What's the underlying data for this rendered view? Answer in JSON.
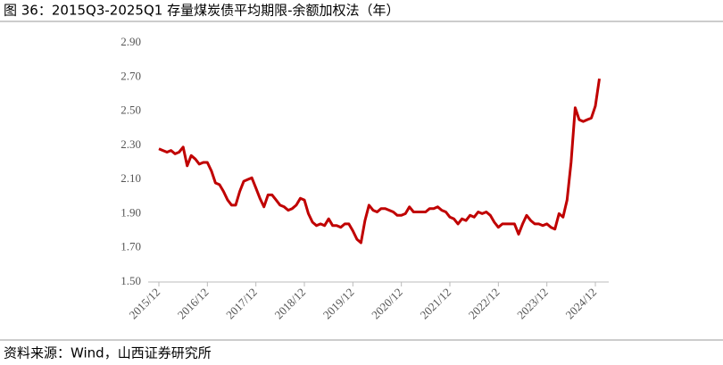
{
  "chart_data": {
    "type": "line",
    "title": "图 36：2015Q3-2025Q1 存量煤炭债平均期限-余额加权法（年）",
    "source": "资料来源：Wind，山西证券研究所",
    "categories": [
      "2015/12",
      null,
      null,
      null,
      null,
      null,
      null,
      null,
      null,
      null,
      null,
      null,
      "2016/12",
      null,
      null,
      null,
      null,
      null,
      null,
      null,
      null,
      null,
      null,
      null,
      "2017/12",
      null,
      null,
      null,
      null,
      null,
      null,
      null,
      null,
      null,
      null,
      null,
      "2018/12",
      null,
      null,
      null,
      null,
      null,
      null,
      null,
      null,
      null,
      null,
      null,
      "2019/12",
      null,
      null,
      null,
      null,
      null,
      null,
      null,
      null,
      null,
      null,
      null,
      "2020/12",
      null,
      null,
      null,
      null,
      null,
      null,
      null,
      null,
      null,
      null,
      null,
      "2021/12",
      null,
      null,
      null,
      null,
      null,
      null,
      null,
      null,
      null,
      null,
      null,
      "2022/12",
      null,
      null,
      null,
      null,
      null,
      null,
      null,
      null,
      null,
      null,
      null,
      "2023/12",
      null,
      null,
      null,
      null,
      null,
      null,
      null,
      null,
      null,
      null,
      null,
      "2024/12",
      null
    ],
    "series": [
      {
        "name": "余额加权平均期限",
        "color": "#c00000",
        "values": [
          2.28,
          2.27,
          2.26,
          2.27,
          2.25,
          2.26,
          2.29,
          2.18,
          2.24,
          2.22,
          2.19,
          2.2,
          2.2,
          2.15,
          2.08,
          2.07,
          2.03,
          1.98,
          1.95,
          1.95,
          2.03,
          2.09,
          2.1,
          2.11,
          2.05,
          1.99,
          1.94,
          2.01,
          2.01,
          1.98,
          1.95,
          1.94,
          1.92,
          1.93,
          1.95,
          1.99,
          1.98,
          1.9,
          1.85,
          1.83,
          1.84,
          1.83,
          1.87,
          1.83,
          1.83,
          1.82,
          1.84,
          1.84,
          1.8,
          1.75,
          1.73,
          1.86,
          1.95,
          1.92,
          1.91,
          1.93,
          1.93,
          1.92,
          1.91,
          1.89,
          1.89,
          1.9,
          1.94,
          1.91,
          1.91,
          1.91,
          1.91,
          1.93,
          1.93,
          1.94,
          1.92,
          1.91,
          1.88,
          1.87,
          1.84,
          1.87,
          1.86,
          1.89,
          1.88,
          1.91,
          1.9,
          1.91,
          1.89,
          1.85,
          1.82,
          1.84,
          1.84,
          1.84,
          1.84,
          1.78,
          1.84,
          1.89,
          1.86,
          1.84,
          1.84,
          1.83,
          1.84,
          1.82,
          1.81,
          1.9,
          1.88,
          1.98,
          2.2,
          2.52,
          2.45,
          2.44,
          2.45,
          2.46,
          2.53,
          2.69
        ]
      }
    ],
    "ylim": [
      1.5,
      2.9
    ],
    "yticks": [
      {
        "value": 1.5,
        "label": "1.50"
      },
      {
        "value": 1.7,
        "label": "1.70"
      },
      {
        "value": 1.9,
        "label": "1.90"
      },
      {
        "value": 2.1,
        "label": "2.10"
      },
      {
        "value": 2.3,
        "label": "2.30"
      },
      {
        "value": 2.5,
        "label": "2.50"
      },
      {
        "value": 2.7,
        "label": "2.70"
      },
      {
        "value": 2.9,
        "label": "2.90"
      }
    ],
    "grid": false
  }
}
